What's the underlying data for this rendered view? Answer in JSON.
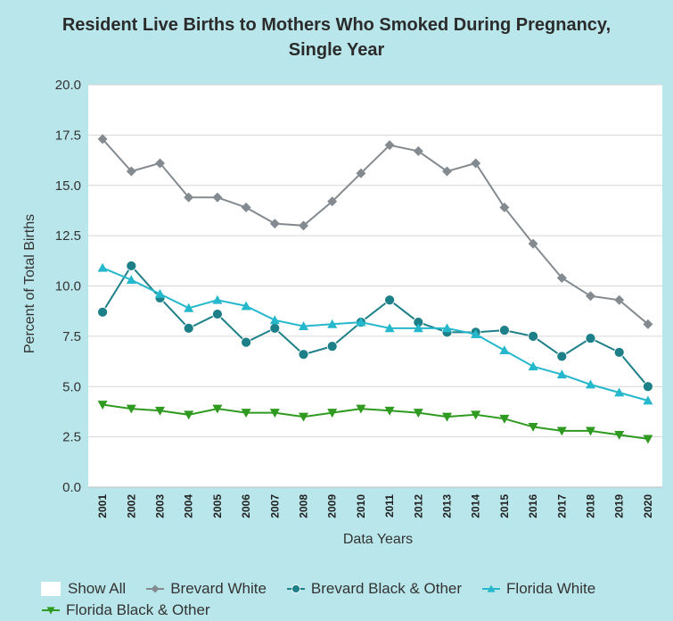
{
  "chart_data": {
    "type": "line",
    "title_lines": [
      "Resident Live Births to Mothers Who Smoked During Pregnancy,",
      "Single Year"
    ],
    "xlabel": "Data Years",
    "ylabel": "Percent of Total Births",
    "ylim": [
      0,
      20
    ],
    "yticks": [
      "0.0",
      "2.5",
      "5.0",
      "7.5",
      "10.0",
      "12.5",
      "15.0",
      "17.5",
      "20.0"
    ],
    "grid": true,
    "legend_position": "bottom",
    "categories": [
      "2001",
      "2002",
      "2003",
      "2004",
      "2005",
      "2006",
      "2007",
      "2008",
      "2009",
      "2010",
      "2011",
      "2012",
      "2013",
      "2014",
      "2015",
      "2016",
      "2017",
      "2018",
      "2019",
      "2020"
    ],
    "series": [
      {
        "name": "Brevard White",
        "color": "#848b90",
        "marker": "diamond",
        "values": [
          17.3,
          15.7,
          16.1,
          14.4,
          14.4,
          13.9,
          13.1,
          13.0,
          14.2,
          15.6,
          17.0,
          16.7,
          15.7,
          16.1,
          13.9,
          12.1,
          10.4,
          9.5,
          9.3,
          8.1
        ]
      },
      {
        "name": "Brevard Black & Other",
        "color": "#1d7f87",
        "marker": "circle",
        "values": [
          8.7,
          11.0,
          9.4,
          7.9,
          8.6,
          7.2,
          7.9,
          6.6,
          7.0,
          8.2,
          9.3,
          8.2,
          7.7,
          7.7,
          7.8,
          7.5,
          6.5,
          7.4,
          6.7,
          5.0
        ]
      },
      {
        "name": "Florida White",
        "color": "#25b8cc",
        "marker": "triangle-up",
        "values": [
          10.9,
          10.3,
          9.6,
          8.9,
          9.3,
          9.0,
          8.3,
          8.0,
          8.1,
          8.2,
          7.9,
          7.9,
          7.9,
          7.6,
          6.8,
          6.0,
          5.6,
          5.1,
          4.7,
          4.3
        ]
      },
      {
        "name": "Florida Black & Other",
        "color": "#2f9a20",
        "marker": "triangle-down",
        "values": [
          4.1,
          3.9,
          3.8,
          3.6,
          3.9,
          3.7,
          3.7,
          3.5,
          3.7,
          3.9,
          3.8,
          3.7,
          3.5,
          3.6,
          3.4,
          3.0,
          2.8,
          2.8,
          2.6,
          2.4
        ]
      }
    ]
  },
  "legend": {
    "show_all_label": "Show All"
  }
}
